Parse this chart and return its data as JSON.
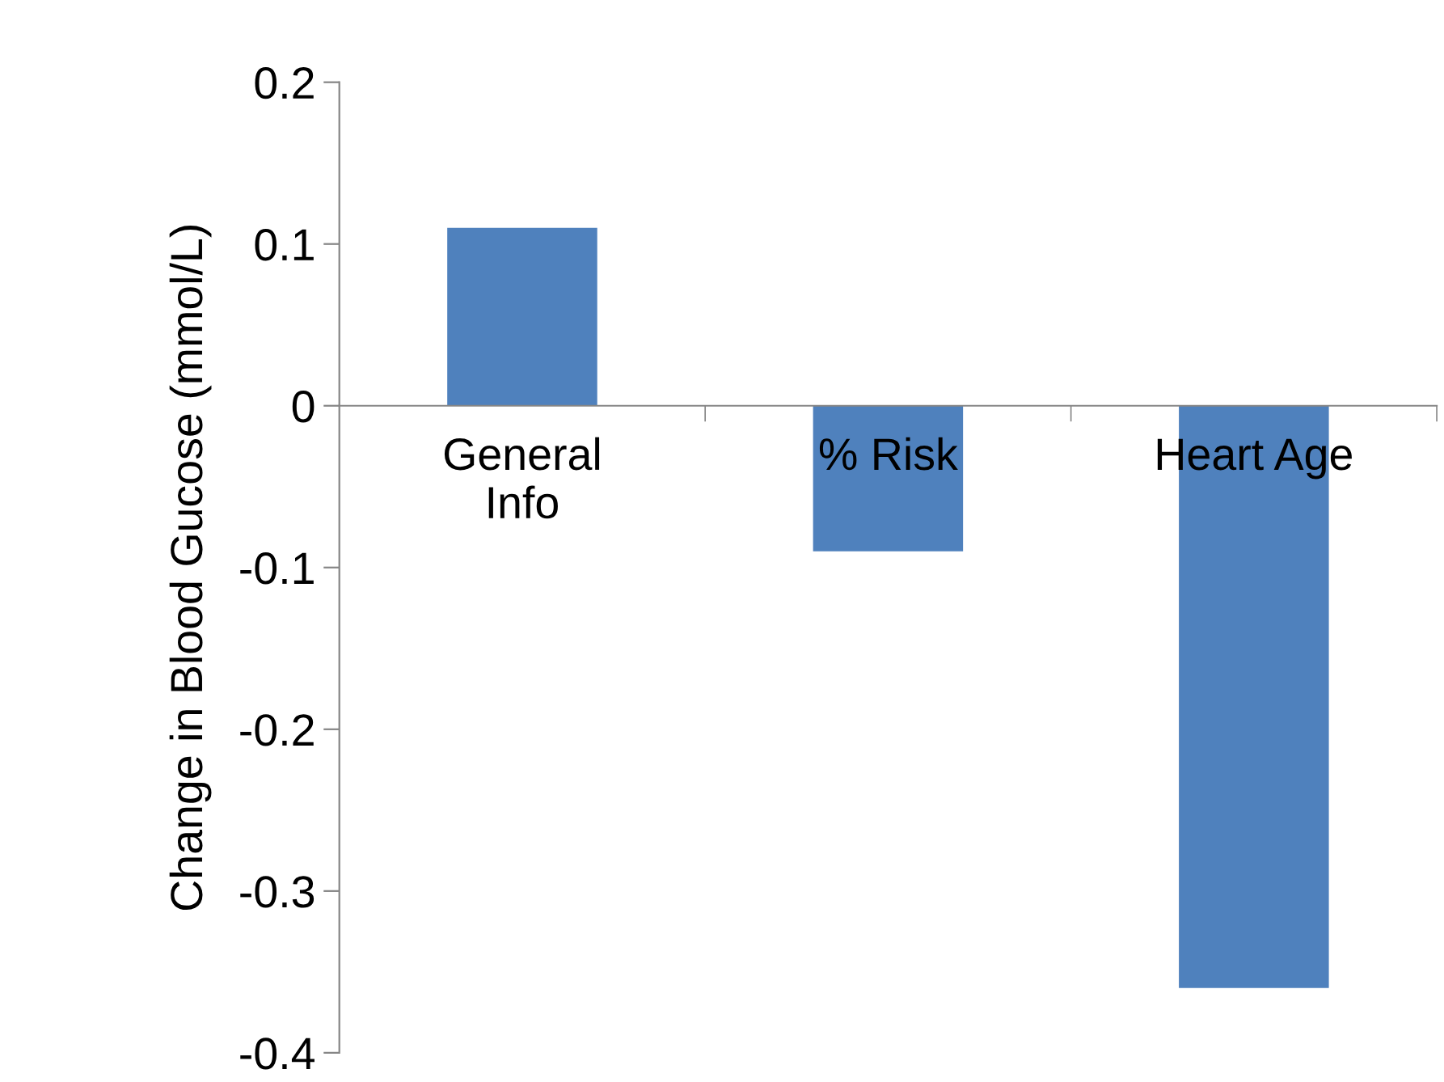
{
  "chart_data": {
    "type": "bar",
    "ylabel": "Change in Blood Gucose (mmol/L)",
    "categories": [
      "General\nInfo",
      "% Risk",
      "Heart Age"
    ],
    "values": [
      0.11,
      -0.09,
      -0.36
    ],
    "color": "#4f81bd",
    "ylim": [
      -0.4,
      0.2
    ],
    "yticks": [
      -0.4,
      -0.3,
      -0.2,
      -0.1,
      0,
      0.1,
      0.2
    ],
    "grid": false,
    "legend": false
  }
}
